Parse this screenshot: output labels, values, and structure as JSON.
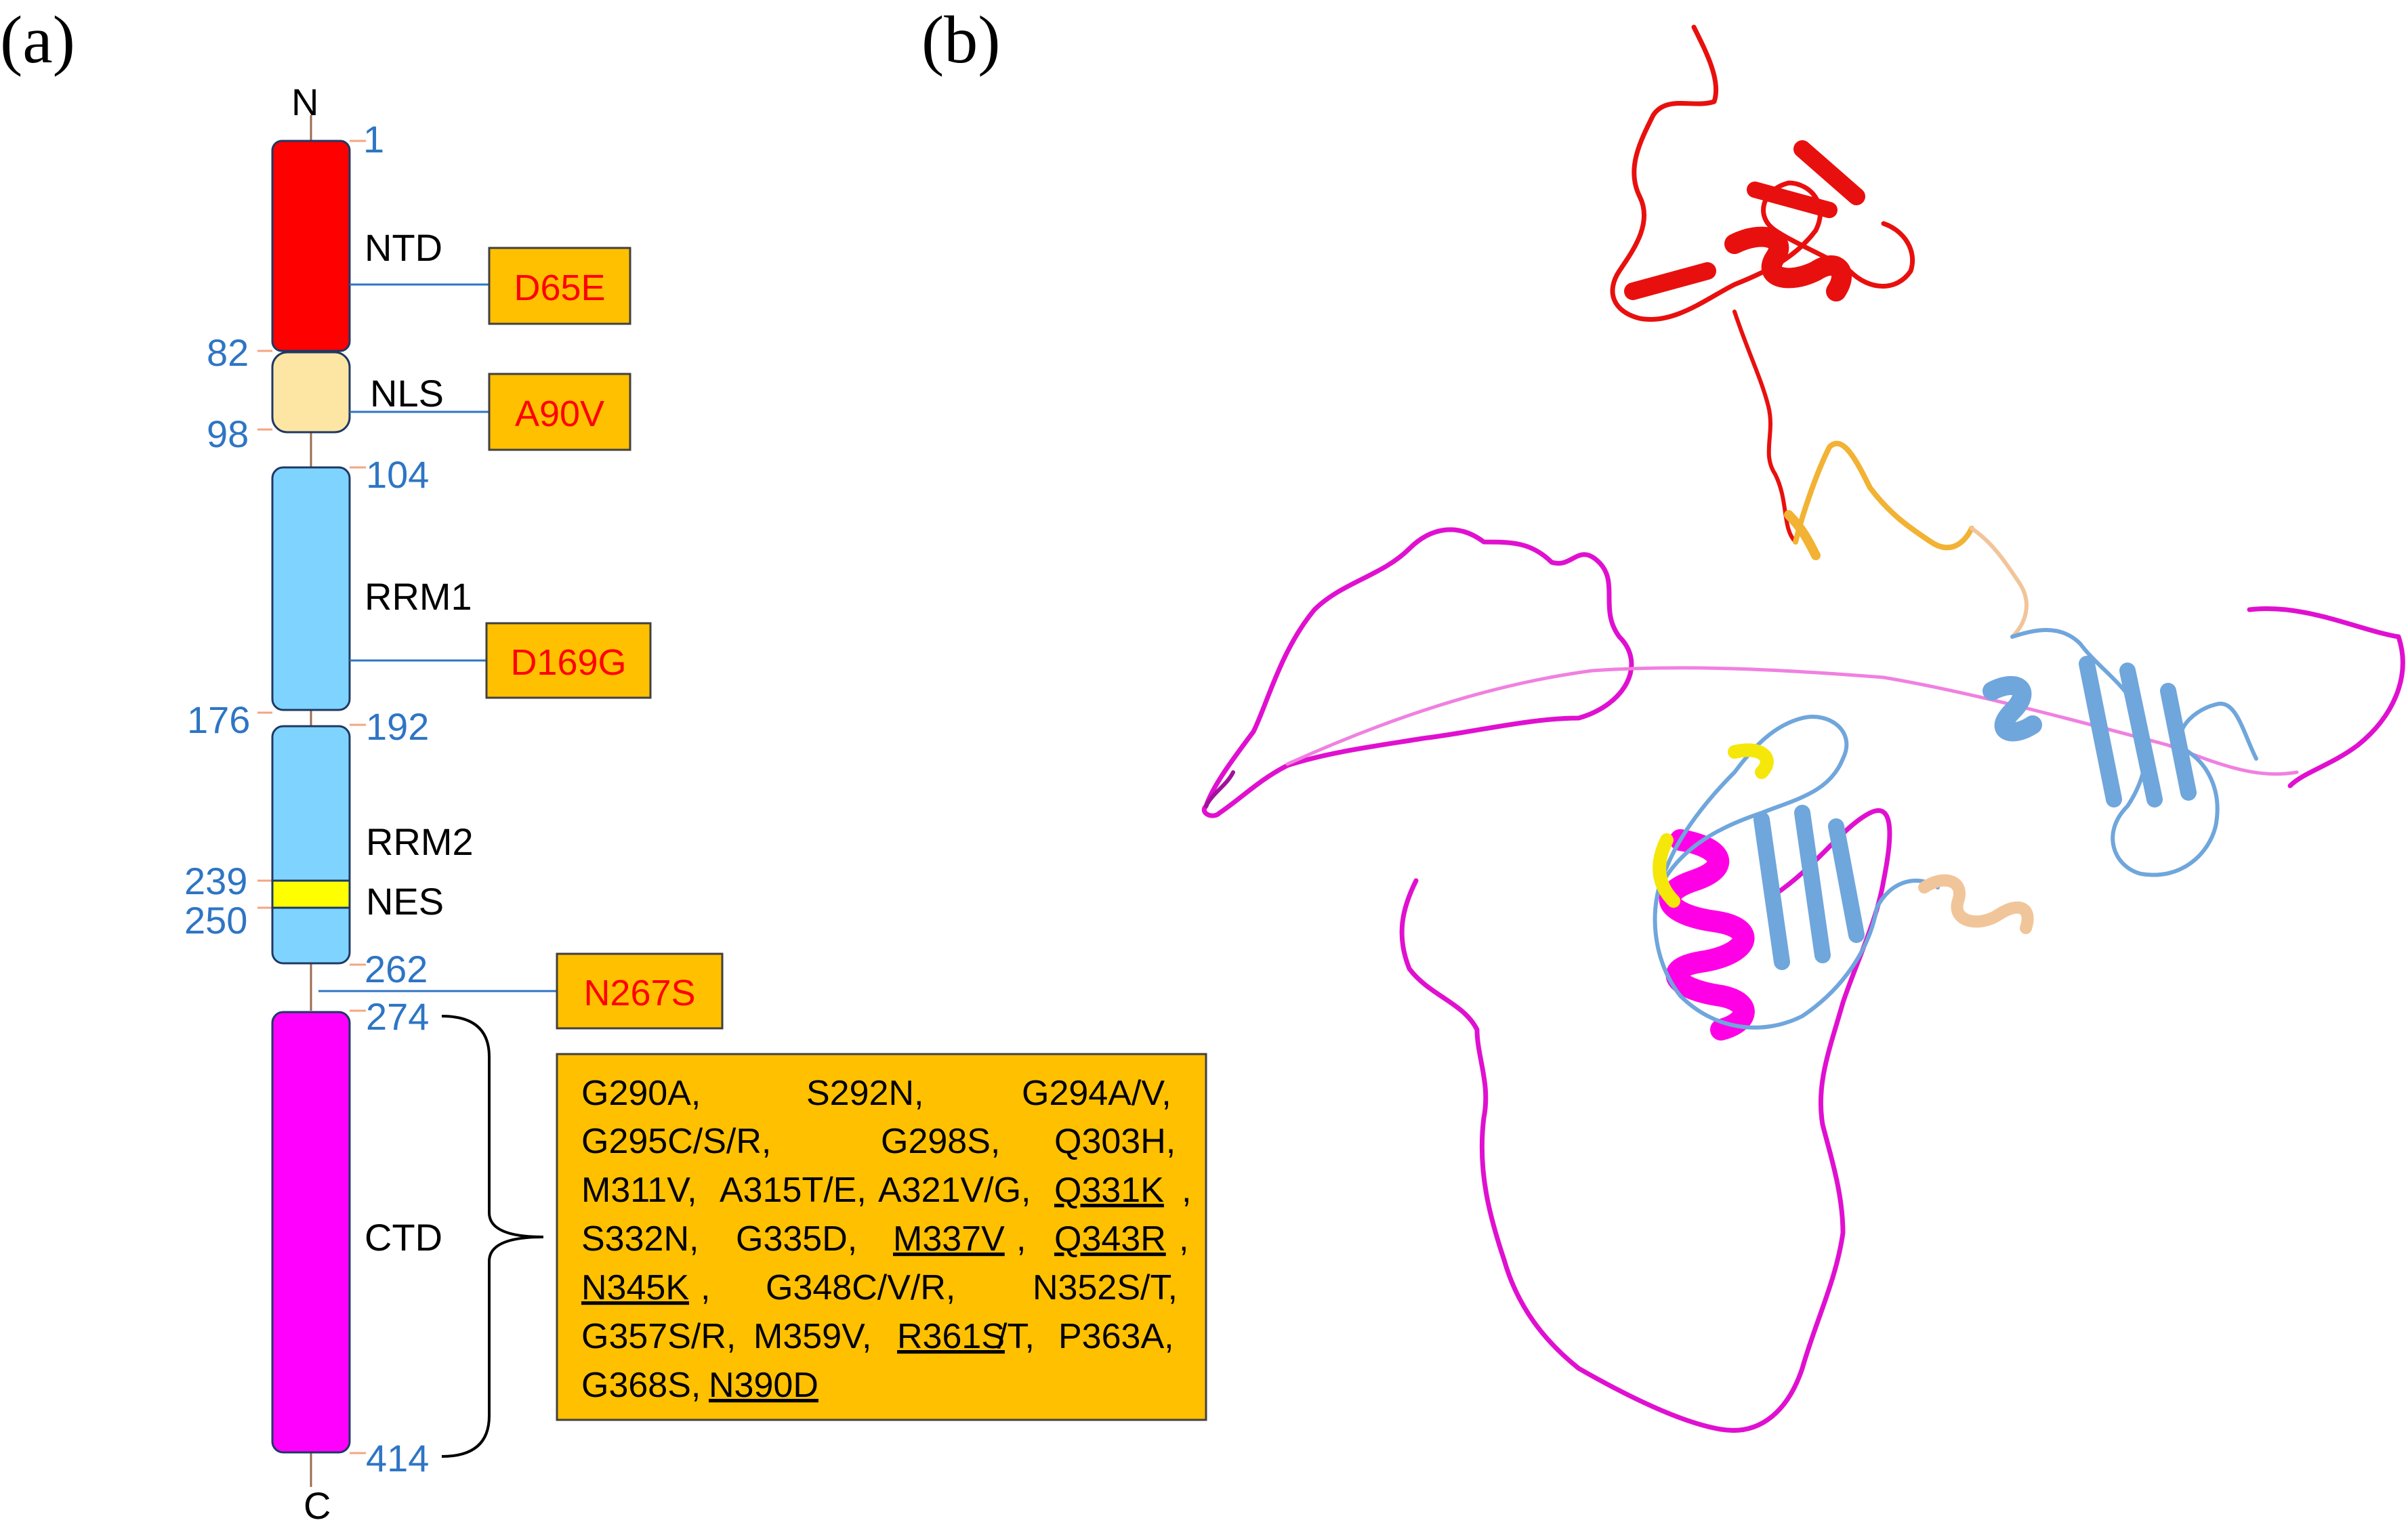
{
  "panels": {
    "a": "(a)",
    "b": "(b)"
  },
  "termini": {
    "n": "N",
    "c": "C"
  },
  "domains": [
    {
      "key": "ntd",
      "label": "NTD",
      "color": "#ff0000"
    },
    {
      "key": "nls",
      "label": "NLS",
      "color": "#fde6a3"
    },
    {
      "key": "rrm1",
      "label": "RRM1",
      "color": "#7fd4ff"
    },
    {
      "key": "rrm2",
      "label": "RRM2",
      "color": "#7fd4ff"
    },
    {
      "key": "nes",
      "label": "NES",
      "color": "#ffff00"
    },
    {
      "key": "ctd",
      "label": "CTD",
      "color": "#ff00ff"
    }
  ],
  "residues": {
    "r1": "1",
    "r82": "82",
    "r98": "98",
    "r104": "104",
    "r176": "176",
    "r192": "192",
    "r239": "239",
    "r250": "250",
    "r262": "262",
    "r274": "274",
    "r414": "414"
  },
  "mutations": {
    "d65e": "D65E",
    "a90v": "A90V",
    "d169g": "D169G",
    "n267s": "N267S"
  },
  "ctd_mutations": {
    "l1": [
      "G290A,",
      "S292N,",
      "G294A/V,"
    ],
    "l2": [
      "G295C/S/R,",
      "G298S,",
      "Q303H,"
    ],
    "l3": [
      "M311V,",
      "A315T/E,",
      "A321V/G,",
      "Q331K",
      ","
    ],
    "l4": [
      "S332N,",
      "G335D,",
      "M337V",
      ",",
      "Q343R",
      ","
    ],
    "l5": [
      "N345K",
      ",",
      "G348C/V/R,",
      "N352S/T,"
    ],
    "l6": [
      "G357S/R,",
      "M359V,",
      "R361S",
      "/T,",
      "P363A,"
    ],
    "l7": [
      "G368S,",
      "N390D"
    ]
  },
  "colors": {
    "residue_numbers": "#2e75c4",
    "mutation_box": "#ffc000",
    "mutation_text": "#ff0000",
    "structure_ntd": "#e8100e",
    "structure_linker": "#f2b233",
    "structure_rrm": "#6fa6dc",
    "structure_ctd": "#e010d0",
    "structure_nes": "#f5e70a",
    "structure_linker2": "#f1c59a"
  }
}
